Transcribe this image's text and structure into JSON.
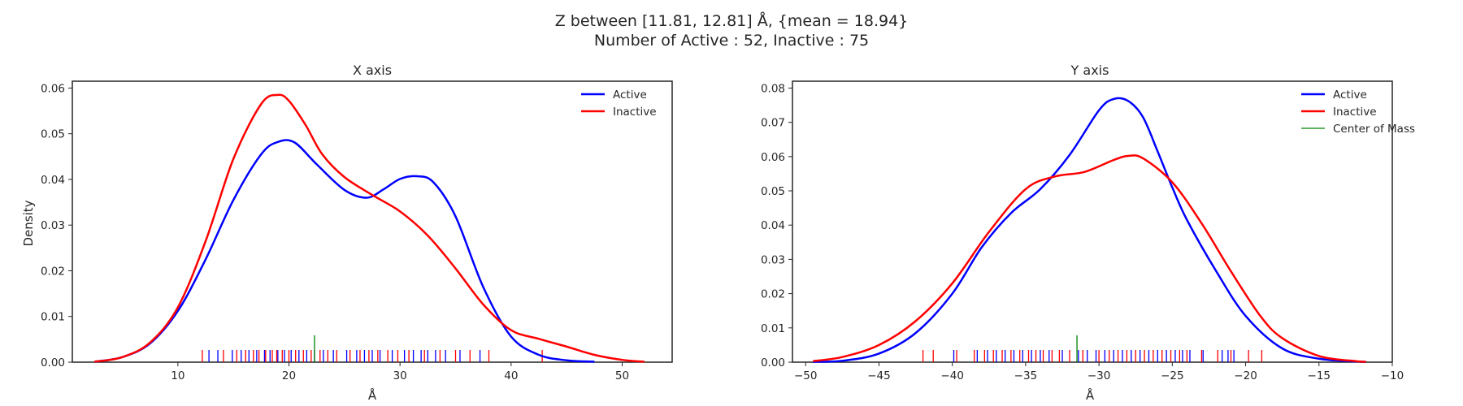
{
  "figure": {
    "title_line1": "Z between [11.81, 12.81] Å, {mean = 18.94}",
    "title_line2": "Number of Active : 52, Inactive : 75"
  },
  "colors": {
    "active": "#0000ff",
    "inactive": "#ff0000",
    "center_of_mass": "#008000"
  },
  "chart_data": [
    {
      "type": "line",
      "title": "X axis",
      "xlabel": "Å",
      "ylabel": "Density",
      "xlim": [
        0.5,
        54.5
      ],
      "ylim": [
        0,
        0.0615
      ],
      "xticks": [
        10,
        20,
        30,
        40,
        50
      ],
      "yticks": [
        0.0,
        0.01,
        0.02,
        0.03,
        0.04,
        0.05,
        0.06
      ],
      "grid": false,
      "legend": "top-right",
      "series": [
        {
          "name": "Active",
          "color": "#0000ff",
          "x": [
            2.5,
            5,
            7.5,
            10,
            12.5,
            15,
            17.5,
            19,
            20.5,
            22.5,
            25,
            27,
            28.5,
            30,
            31.5,
            33,
            35,
            37.5,
            40,
            42.5,
            45,
            47.5
          ],
          "y": [
            0.0001,
            0.0011,
            0.0041,
            0.0112,
            0.0225,
            0.0355,
            0.0455,
            0.0482,
            0.0481,
            0.0433,
            0.0377,
            0.036,
            0.0378,
            0.0401,
            0.0407,
            0.0394,
            0.0319,
            0.0164,
            0.0056,
            0.0016,
            0.0004,
            0.0001
          ]
        },
        {
          "name": "Inactive",
          "color": "#ff0000",
          "x": [
            2.5,
            5,
            7.5,
            10,
            12.5,
            15,
            17.5,
            19,
            20,
            21.5,
            23,
            25,
            27.5,
            30,
            32.5,
            35,
            37.5,
            40,
            42.5,
            45,
            47.5,
            50,
            52
          ],
          "y": [
            0.0001,
            0.0011,
            0.0043,
            0.012,
            0.0265,
            0.0445,
            0.0565,
            0.0585,
            0.0572,
            0.0519,
            0.0455,
            0.0405,
            0.0366,
            0.033,
            0.0277,
            0.0205,
            0.0126,
            0.007,
            0.0051,
            0.0034,
            0.0016,
            0.0005,
            0.0001
          ]
        }
      ],
      "rug": {
        "active": [
          12.8,
          13.6,
          14.9,
          15.7,
          16.4,
          17.1,
          17.8,
          18.3,
          19.0,
          19.6,
          20.2,
          20.9,
          21.6,
          22.3,
          23.1,
          24.0,
          25.2,
          26.1,
          26.8,
          27.5,
          28.2,
          29.3,
          30.4,
          31.2,
          31.9,
          32.5,
          33.2,
          34.1,
          35.4,
          37.2
        ],
        "inactive": [
          12.2,
          14.1,
          15.3,
          16.1,
          16.8,
          17.3,
          17.9,
          18.5,
          18.9,
          19.4,
          20.0,
          20.6,
          21.3,
          22.0,
          22.8,
          23.5,
          24.3,
          25.5,
          26.4,
          27.2,
          28.0,
          28.9,
          29.8,
          30.8,
          32.2,
          33.6,
          35.0,
          36.3,
          38.0,
          42.8
        ]
      },
      "center_of_mass": 22.3
    },
    {
      "type": "line",
      "title": "Y axis",
      "xlabel": "Å",
      "ylabel": "",
      "xlim": [
        -50.9,
        -10.0
      ],
      "ylim": [
        0,
        0.082
      ],
      "xticks": [
        -50,
        -45,
        -40,
        -35,
        -30,
        -25,
        -20,
        -15,
        -10
      ],
      "yticks": [
        0.0,
        0.01,
        0.02,
        0.03,
        0.04,
        0.05,
        0.06,
        0.07,
        0.08
      ],
      "grid": false,
      "legend": "top-right",
      "series": [
        {
          "name": "Active",
          "color": "#0000ff",
          "x": [
            -49.5,
            -47.5,
            -45,
            -42.5,
            -40,
            -38,
            -36,
            -34,
            -32,
            -30,
            -29,
            -28,
            -27,
            -26,
            -25,
            -24,
            -22,
            -20,
            -17.5,
            -15,
            -12.5,
            -11.8
          ],
          "y": [
            0.0001,
            0.0004,
            0.0025,
            0.0085,
            0.02,
            0.0335,
            0.0435,
            0.0505,
            0.0605,
            0.0735,
            0.0768,
            0.0762,
            0.0715,
            0.0615,
            0.051,
            0.0415,
            0.0265,
            0.0135,
            0.004,
            0.001,
            0.0002,
            0.0001
          ]
        },
        {
          "name": "Inactive",
          "color": "#ff0000",
          "x": [
            -49.5,
            -47.5,
            -45,
            -42.5,
            -40,
            -37.5,
            -35,
            -33,
            -31,
            -29,
            -28,
            -27,
            -25,
            -23,
            -21,
            -19,
            -17.5,
            -15,
            -12.5,
            -11.8
          ],
          "y": [
            0.0003,
            0.0015,
            0.005,
            0.012,
            0.023,
            0.038,
            0.0505,
            0.0542,
            0.0555,
            0.059,
            0.0602,
            0.0595,
            0.0525,
            0.0405,
            0.0265,
            0.0135,
            0.007,
            0.0018,
            0.0003,
            0.0001
          ]
        }
      ],
      "rug": {
        "active": [
          -39.9,
          -38.3,
          -37.6,
          -37.0,
          -36.4,
          -35.8,
          -35.2,
          -34.6,
          -34.0,
          -33.4,
          -32.5,
          -31.4,
          -30.8,
          -30.2,
          -29.6,
          -29.0,
          -28.4,
          -27.8,
          -27.2,
          -26.6,
          -26.0,
          -25.4,
          -24.8,
          -24.3,
          -23.8,
          -22.9,
          -21.6,
          -21.2,
          -20.8
        ],
        "inactive": [
          -42.0,
          -41.3,
          -39.7,
          -38.5,
          -37.8,
          -37.2,
          -36.6,
          -36.0,
          -35.4,
          -34.8,
          -34.3,
          -33.8,
          -33.2,
          -32.7,
          -32.0,
          -31.1,
          -30.0,
          -29.3,
          -28.7,
          -28.1,
          -27.5,
          -26.9,
          -26.3,
          -25.7,
          -25.1,
          -24.5,
          -24.0,
          -23.0,
          -21.9,
          -21.0,
          -19.8,
          -18.9
        ]
      },
      "center_of_mass": -31.5,
      "extra_legend": "Center of Mass"
    }
  ]
}
